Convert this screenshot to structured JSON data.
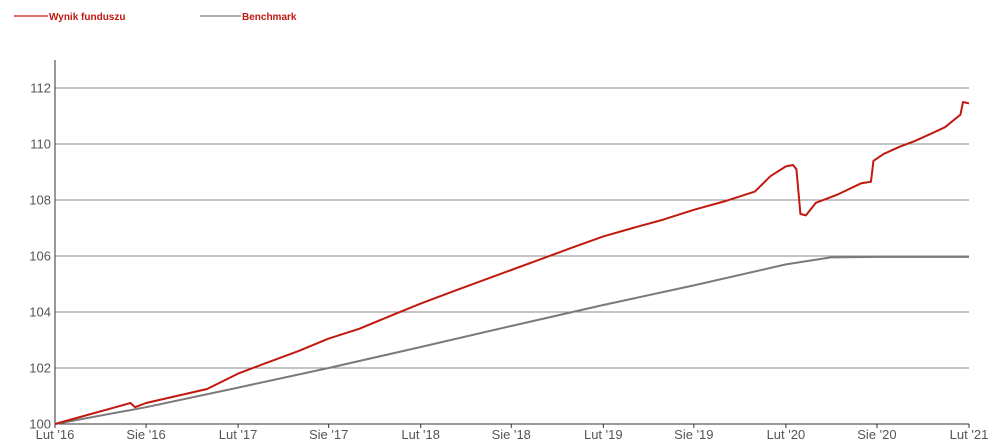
{
  "colors": {
    "fund": "#c0190f",
    "benchmark": "#7a7a7a",
    "grid": "#8a8a8a",
    "axis": "#333333",
    "legend_text": "#c0190f"
  },
  "chart_data": {
    "type": "line",
    "title": "",
    "xlabel": "",
    "ylabel": "",
    "ylim": [
      100,
      113
    ],
    "xlim": [
      "2016-02-01",
      "2021-02-01"
    ],
    "yticks": [
      100,
      102,
      104,
      106,
      108,
      110,
      112
    ],
    "ytick_labels": [
      "100",
      "102",
      "104",
      "106",
      "108",
      "110",
      "112"
    ],
    "xticks": [
      "2016-02-01",
      "2016-08-01",
      "2017-02-01",
      "2017-08-01",
      "2018-02-01",
      "2018-08-01",
      "2019-02-01",
      "2019-08-01",
      "2020-02-01",
      "2020-08-01",
      "2021-02-01"
    ],
    "xtick_labels": [
      "Lut '16",
      "Sie '16",
      "Lut '17",
      "Sie '17",
      "Lut '18",
      "Sie '18",
      "Lut '19",
      "Sie '19",
      "Lut '20",
      "Sie '20",
      "Lut '21"
    ],
    "grid": "horizontal",
    "legend_position": "top-left",
    "series": [
      {
        "name": "Wynik funduszu",
        "color": "#c0190f",
        "points": [
          [
            "2016-02-01",
            100.0
          ],
          [
            "2016-04-01",
            100.3
          ],
          [
            "2016-06-01",
            100.6
          ],
          [
            "2016-07-01",
            100.75
          ],
          [
            "2016-07-10",
            100.6
          ],
          [
            "2016-08-01",
            100.75
          ],
          [
            "2016-10-01",
            101.0
          ],
          [
            "2016-12-01",
            101.25
          ],
          [
            "2017-02-01",
            101.8
          ],
          [
            "2017-04-01",
            102.2
          ],
          [
            "2017-06-01",
            102.6
          ],
          [
            "2017-08-01",
            103.05
          ],
          [
            "2017-10-01",
            103.4
          ],
          [
            "2017-12-01",
            103.85
          ],
          [
            "2018-02-01",
            104.3
          ],
          [
            "2018-04-01",
            104.7
          ],
          [
            "2018-06-01",
            105.1
          ],
          [
            "2018-08-01",
            105.5
          ],
          [
            "2018-10-01",
            105.9
          ],
          [
            "2018-12-01",
            106.3
          ],
          [
            "2019-02-01",
            106.7
          ],
          [
            "2019-04-01",
            107.0
          ],
          [
            "2019-06-01",
            107.3
          ],
          [
            "2019-08-01",
            107.65
          ],
          [
            "2019-10-01",
            107.95
          ],
          [
            "2019-12-01",
            108.3
          ],
          [
            "2020-01-01",
            108.85
          ],
          [
            "2020-02-01",
            109.2
          ],
          [
            "2020-02-15",
            109.25
          ],
          [
            "2020-02-22",
            109.1
          ],
          [
            "2020-03-01",
            107.5
          ],
          [
            "2020-03-12",
            107.45
          ],
          [
            "2020-04-01",
            107.9
          ],
          [
            "2020-05-15",
            108.2
          ],
          [
            "2020-07-01",
            108.6
          ],
          [
            "2020-07-20",
            108.65
          ],
          [
            "2020-07-25",
            109.4
          ],
          [
            "2020-08-15",
            109.65
          ],
          [
            "2020-09-15",
            109.9
          ],
          [
            "2020-10-15",
            110.1
          ],
          [
            "2020-11-15",
            110.35
          ],
          [
            "2020-12-15",
            110.6
          ],
          [
            "2021-01-15",
            111.05
          ],
          [
            "2021-01-20",
            111.5
          ],
          [
            "2021-02-01",
            111.45
          ]
        ]
      },
      {
        "name": "Benchmark",
        "color": "#7a7a7a",
        "points": [
          [
            "2016-02-01",
            100.0
          ],
          [
            "2016-08-01",
            100.6
          ],
          [
            "2017-02-01",
            101.3
          ],
          [
            "2017-08-01",
            102.0
          ],
          [
            "2018-02-01",
            102.75
          ],
          [
            "2018-08-01",
            103.5
          ],
          [
            "2019-02-01",
            104.25
          ],
          [
            "2019-08-01",
            104.95
          ],
          [
            "2020-02-01",
            105.7
          ],
          [
            "2020-05-01",
            105.95
          ],
          [
            "2020-08-01",
            105.97
          ],
          [
            "2021-02-01",
            105.97
          ]
        ]
      }
    ]
  }
}
